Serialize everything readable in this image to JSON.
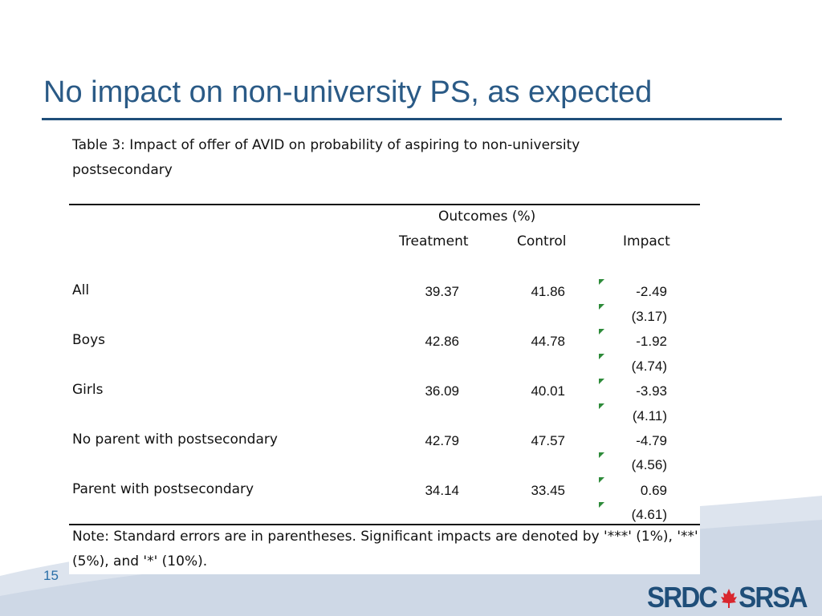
{
  "slide": {
    "title": "No impact on non-university PS, as expected",
    "number": "15"
  },
  "table": {
    "caption": "Table 3: Impact of offer of AVID on probability of aspiring to non-university postsecondary",
    "group_header": "Outcomes (%)",
    "columns": [
      "Treatment",
      "Control",
      "Impact"
    ],
    "rows": [
      {
        "label": "All",
        "treatment": "39.37",
        "control": "41.86",
        "impact": "-2.49",
        "se": "(3.17)"
      },
      {
        "label": "Boys",
        "treatment": "42.86",
        "control": "44.78",
        "impact": "-1.92",
        "se": "(4.74)"
      },
      {
        "label": "Girls",
        "treatment": "36.09",
        "control": "40.01",
        "impact": "-3.93",
        "se": "(4.11)"
      },
      {
        "label": "No parent with postsecondary",
        "treatment": "42.79",
        "control": "47.57",
        "impact": "-4.79",
        "se": "(4.56)"
      },
      {
        "label": "Parent with postsecondary",
        "treatment": "34.14",
        "control": "33.45",
        "impact": "0.69",
        "se": "(4.61)"
      }
    ],
    "note": "Note: Standard errors are in parentheses. Significant impacts are denoted by '***' (1%), '**' (5%), and '*' (10%)."
  },
  "logo": {
    "text": "SRDC SRSA",
    "color": "#1f4e79",
    "leaf_color": "#d9262e"
  }
}
